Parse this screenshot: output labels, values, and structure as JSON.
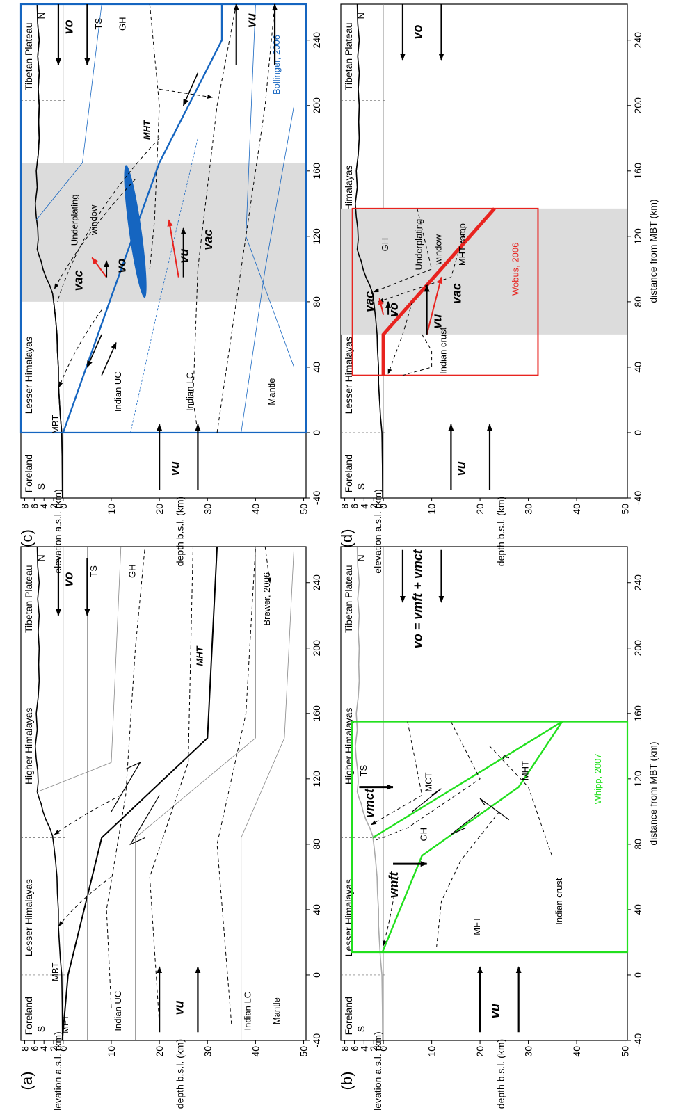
{
  "colors": {
    "bollinger": "#1565c0",
    "wobus": "#e8231f",
    "whipp": "#22e01e",
    "shade": "#dcdcdc",
    "topo_gray": "#aaaaaa"
  },
  "x_axis": {
    "label": "distance from MBT (km)",
    "ticks": [
      "-40",
      "0",
      "40",
      "80",
      "120",
      "160",
      "200",
      "240"
    ],
    "range": [
      -40,
      262
    ]
  },
  "y_axis": {
    "elevation_label": "elevation a.s.l. (km)",
    "depth_label": "depth b.s.l. (km)",
    "elevation_ticks": [
      "8",
      "6",
      "4",
      "2"
    ],
    "depth_ticks": [
      "0",
      "10",
      "20",
      "30",
      "40",
      "50"
    ]
  },
  "regions": [
    "Foreland",
    "Lesser Himalayas",
    "Higher Himalayas",
    "Tibetan Plateau"
  ],
  "panels": {
    "a": {
      "id": "(a)",
      "south": "S",
      "north": "N",
      "labels": {
        "mft": "MFT",
        "mbt": "MBT",
        "indian_uc": "Indian UC",
        "indian_lc": "Indian LC",
        "mantle": "Mantle",
        "ts": "TS",
        "gh": "GH",
        "mht": "MHT",
        "ref": "Brewer, 2006"
      },
      "velocities": {
        "vu": "vu",
        "vo": "vo"
      }
    },
    "b": {
      "id": "(b)",
      "south": "S",
      "north": "N",
      "labels": {
        "mft": "MFT",
        "mct": "MCT",
        "mht": "MHT",
        "gh": "GH",
        "ts": "TS",
        "q": "?",
        "indian_crust": "Indian crust",
        "ref": "Whipp, 2007"
      },
      "velocities": {
        "vu": "vu",
        "vmft": "vmft",
        "vmct": "vmct",
        "vo_eq": "vo = vmft + vmct"
      }
    },
    "c": {
      "id": "(c)",
      "south": "S",
      "north": "N",
      "labels": {
        "mbt": "MBT",
        "indian_uc": "Indian UC",
        "indian_lc": "Indian LC",
        "mantle": "Mantle",
        "ts": "TS",
        "gh": "GH",
        "mht": "MHT",
        "underplating": "Underplating",
        "window": "window",
        "ref": "Bollinger, 2006"
      },
      "velocities": {
        "vu": "vu",
        "vo": "vo",
        "vac": "vac"
      }
    },
    "d": {
      "id": "(d)",
      "south": "S",
      "north": "N",
      "labels": {
        "gh": "GH",
        "underplating": "Underplating",
        "window": "window",
        "mht_ramp": "MHT ramp",
        "indian_crust": "Indian crust",
        "ref": "Wobus, 2006"
      },
      "velocities": {
        "vu": "vu",
        "vo": "vo",
        "vac": "vac"
      }
    }
  }
}
